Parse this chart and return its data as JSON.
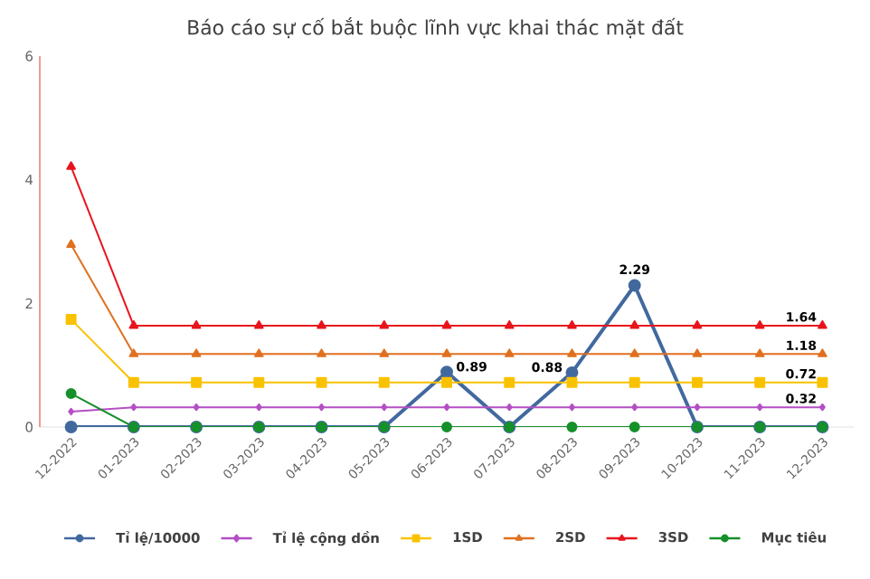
{
  "chart_data": {
    "type": "line",
    "title": "Báo cáo sự cố bắt buộc lĩnh vực khai thác mặt đất",
    "categories": [
      "12-2022",
      "01-2023",
      "02-2023",
      "03-2023",
      "04-2023",
      "05-2023",
      "06-2023",
      "07-2023",
      "08-2023",
      "09-2023",
      "10-2023",
      "11-2023",
      "12-2023"
    ],
    "series": [
      {
        "name": "Tỉ lệ/10000",
        "color": "#41699e",
        "marker": "circle",
        "values": [
          0,
          0,
          0,
          0,
          0,
          0,
          0.89,
          0,
          0.88,
          2.29,
          0,
          0,
          0
        ],
        "value_labels": [
          null,
          null,
          null,
          null,
          null,
          null,
          "0.89",
          null,
          "0.88",
          "2.29",
          null,
          null,
          null
        ]
      },
      {
        "name": "Tỉ lệ cộng dồn",
        "color": "#b44fc4",
        "marker": "diamond",
        "values": [
          0.25,
          0.32,
          0.32,
          0.32,
          0.32,
          0.32,
          0.32,
          0.32,
          0.32,
          0.32,
          0.32,
          0.32,
          0.32
        ],
        "value_labels": [
          null,
          null,
          null,
          null,
          null,
          null,
          null,
          null,
          null,
          null,
          null,
          null,
          "0.32"
        ]
      },
      {
        "name": "1SD",
        "color": "#f9c200",
        "marker": "square",
        "values": [
          1.74,
          0.72,
          0.72,
          0.72,
          0.72,
          0.72,
          0.72,
          0.72,
          0.72,
          0.72,
          0.72,
          0.72,
          0.72
        ],
        "value_labels": [
          null,
          null,
          null,
          null,
          null,
          null,
          null,
          null,
          null,
          null,
          null,
          null,
          "0.72"
        ]
      },
      {
        "name": "2SD",
        "color": "#e07020",
        "marker": "triangle",
        "values": [
          2.95,
          1.18,
          1.18,
          1.18,
          1.18,
          1.18,
          1.18,
          1.18,
          1.18,
          1.18,
          1.18,
          1.18,
          1.18
        ],
        "value_labels": [
          null,
          null,
          null,
          null,
          null,
          null,
          null,
          null,
          null,
          null,
          null,
          null,
          "1.18"
        ]
      },
      {
        "name": "3SD",
        "color": "#e8141c",
        "marker": "triangle",
        "values": [
          4.21,
          1.64,
          1.64,
          1.64,
          1.64,
          1.64,
          1.64,
          1.64,
          1.64,
          1.64,
          1.64,
          1.64,
          1.64
        ],
        "value_labels": [
          null,
          null,
          null,
          null,
          null,
          null,
          null,
          null,
          null,
          null,
          null,
          null,
          "1.64"
        ]
      },
      {
        "name": "Mục tiêu",
        "color": "#16902a",
        "marker": "circle",
        "values": [
          0.54,
          0,
          0,
          0,
          0,
          0,
          0,
          0,
          0,
          0,
          0,
          0,
          0
        ]
      }
    ],
    "ylim": [
      0,
      6
    ],
    "yticks": [
      0,
      2,
      4,
      6
    ],
    "grid": false,
    "legend": "bottom"
  }
}
